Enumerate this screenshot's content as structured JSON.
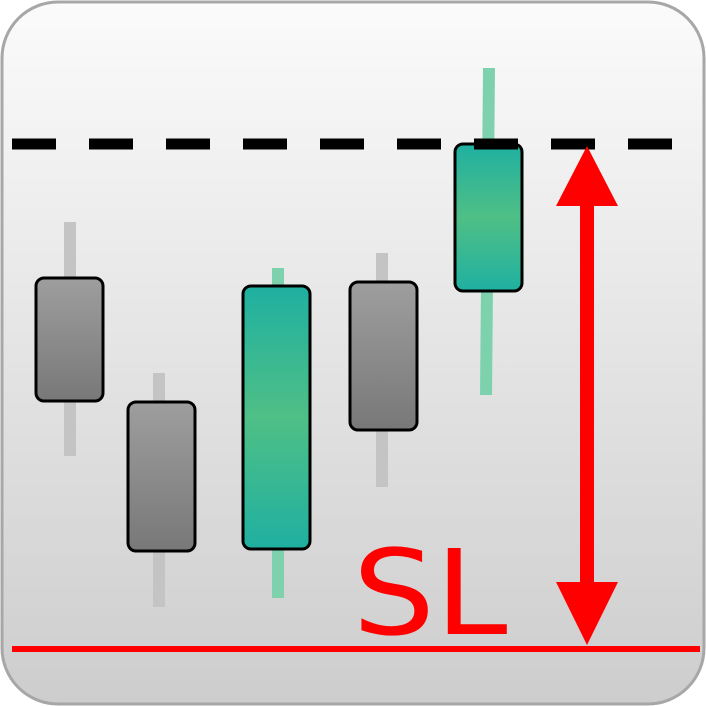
{
  "diagram": {
    "label": "SL",
    "colors": {
      "frame_border": "#a7a7a7",
      "bg_top": "#fbfbfb",
      "bg_bottom": "#cdcdcd",
      "bear_body_top": "#9e9e9e",
      "bear_body_bottom": "#787878",
      "bear_wick": "#c4c4c4",
      "bull_body_edge": "#1fb0a1",
      "bull_body_mid": "#4fbf86",
      "bull_wick": "#7dd2ad",
      "dash_line": "#000000",
      "stop_loss": "#ff0000",
      "candle_outline": "#000000"
    },
    "candles": [
      {
        "name": "candle-1",
        "direction": "bearish"
      },
      {
        "name": "candle-2",
        "direction": "bearish"
      },
      {
        "name": "candle-3",
        "direction": "bullish"
      },
      {
        "name": "candle-4",
        "direction": "bearish"
      },
      {
        "name": "candle-5",
        "direction": "bullish"
      }
    ]
  }
}
